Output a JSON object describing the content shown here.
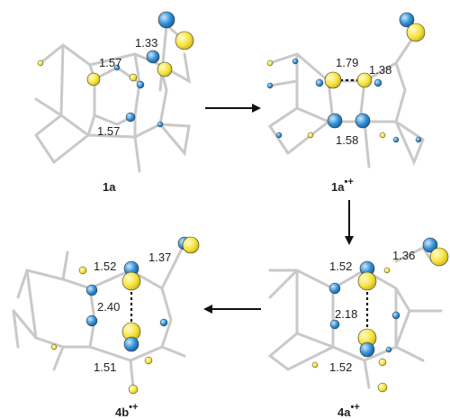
{
  "colors": {
    "charge_atom": "#f7e43c",
    "spin_atom": "#2f8ed6",
    "bond": "#c9c9c9",
    "arrow": "#111111"
  },
  "structures": [
    {
      "label": "1a",
      "superscript": "",
      "distances": [
        "1.33",
        "1.57",
        "1.57"
      ]
    },
    {
      "label": "1a",
      "superscript": "•+",
      "distances": [
        "1.38",
        "1.79",
        "1.58"
      ]
    },
    {
      "label": "4a",
      "superscript": "•+",
      "distances": [
        "1.36",
        "1.52",
        "2.18",
        "1.52"
      ]
    },
    {
      "label": "4b",
      "superscript": "•+",
      "distances": [
        "1.37",
        "1.52",
        "2.40",
        "1.51"
      ]
    }
  ],
  "arrows": [
    "right",
    "down",
    "left"
  ]
}
